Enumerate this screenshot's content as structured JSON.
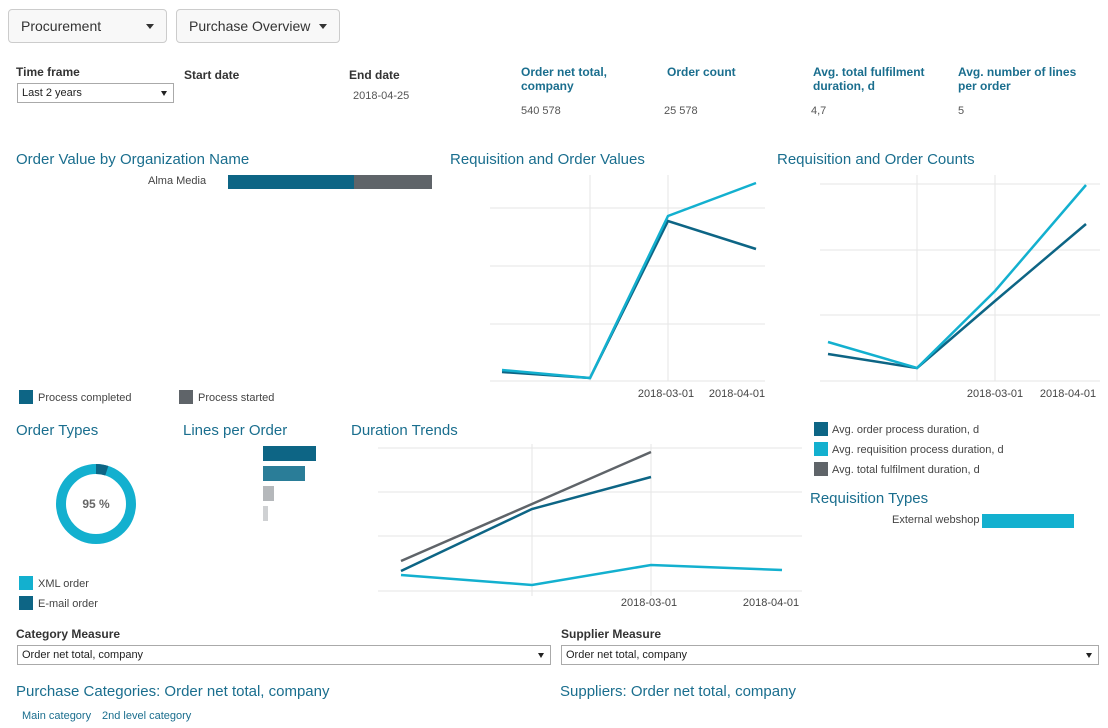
{
  "toolbar": {
    "module_label": "Procurement",
    "view_label": "Purchase Overview"
  },
  "filters": {
    "time_frame_label": "Time frame",
    "time_frame_value": "Last 2 years",
    "start_date_label": "Start date",
    "start_date_value": "",
    "end_date_label": "End date",
    "end_date_value": "2018-04-25"
  },
  "kpis": [
    {
      "label": "Order net total, company",
      "value": "540 578"
    },
    {
      "label": "Order count",
      "value": "25 578"
    },
    {
      "label": "Avg. total fulfilment duration, d",
      "value": "4,7"
    },
    {
      "label": "Avg. number of lines per order",
      "value": "5"
    }
  ],
  "order_value_by_org": {
    "title": "Order Value by Organization Name",
    "org": "Alma Media",
    "completed_share": 0.62,
    "legend": [
      "Process completed",
      "Process started"
    ]
  },
  "colors": {
    "dark_teal": "#0d6585",
    "light_teal": "#13b0cf",
    "gray": "#5f6469",
    "title": "#1a6e8e"
  },
  "requisition_order_values": {
    "title": "Requisition and Order Values",
    "x_ticks": [
      "2018-03-01",
      "2018-04-01"
    ]
  },
  "requisition_order_counts": {
    "title": "Requisition and Order Counts",
    "x_ticks": [
      "2018-03-01",
      "2018-04-01"
    ]
  },
  "duration_legend": [
    "Avg. order process duration, d",
    "Avg. requisition process duration, d",
    "Avg. total fulfilment duration, d"
  ],
  "order_types": {
    "title": "Order Types",
    "center_label": "95 %",
    "xml_share": 0.95,
    "legend": [
      "XML order",
      "E-mail order"
    ]
  },
  "lines_per_order": {
    "title": "Lines per Order",
    "relative_values": [
      1.0,
      0.8,
      0.2,
      0.1
    ]
  },
  "duration_trends": {
    "title": "Duration Trends",
    "x_ticks": [
      "2018-03-01",
      "2018-04-01"
    ]
  },
  "requisition_types": {
    "title": "Requisition Types",
    "category": "External webshop"
  },
  "measures": {
    "category_label": "Category Measure",
    "category_value": "Order net total, company",
    "supplier_label": "Supplier Measure",
    "supplier_value": "Order net total, company"
  },
  "purchase_categories": {
    "title": "Purchase Categories: Order net total, company",
    "links": [
      "Main category",
      "2nd level category"
    ]
  },
  "suppliers": {
    "title": "Suppliers: Order net total, company"
  }
}
